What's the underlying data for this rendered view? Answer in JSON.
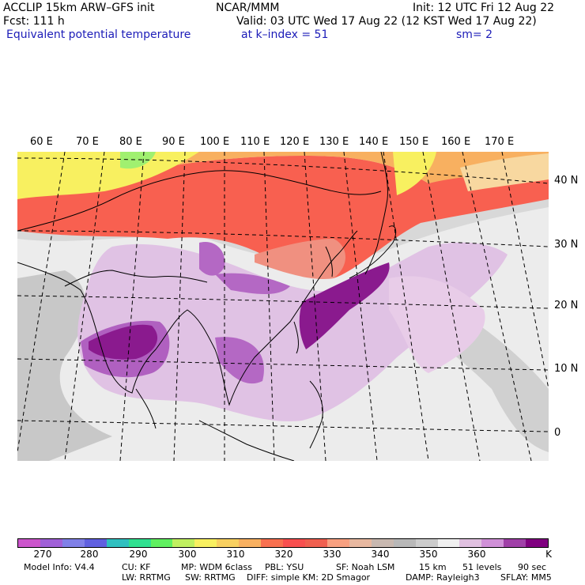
{
  "header": {
    "model": "ACCLIP 15km ARW–GFS init",
    "forecast": "Fcst:  111 h",
    "field": "Equivalent potential temperature",
    "center": "NCAR/MMM",
    "init": "Init: 12 UTC Fri 12 Aug 22",
    "valid": "Valid: 03 UTC Wed 17 Aug 22 (12 KST Wed 17 Aug 22)",
    "level": "at k–index =  51",
    "smooth": "sm= 2"
  },
  "map": {
    "lon_labels": [
      "60 E",
      "70 E",
      "80 E",
      "90 E",
      "100 E",
      "110 E",
      "120 E",
      "130 E",
      "140 E",
      "150 E",
      "160 E",
      "170 E"
    ],
    "lat_labels": [
      "40 N",
      "30 N",
      "20 N",
      "10 N",
      "0"
    ],
    "regions": {
      "land": "Asia continent",
      "ocean": "Pacific / Indian Ocean"
    }
  },
  "colorbar": {
    "colors": [
      "#cc55cc",
      "#a060d8",
      "#8080e8",
      "#6060e0",
      "#30c0c0",
      "#30e090",
      "#60f060",
      "#c0f060",
      "#f8f060",
      "#f8d060",
      "#f8b060",
      "#f87050",
      "#f85050",
      "#f06050",
      "#f8a080",
      "#e8b8a0",
      "#c8b8b0",
      "#b8b8b8",
      "#cccccc",
      "#f0f0f0",
      "#e0c0e0",
      "#d090d8",
      "#a040a8",
      "#800080"
    ],
    "labels": [
      "270",
      "280",
      "290",
      "300",
      "310",
      "320",
      "330",
      "340",
      "350",
      "360",
      "K"
    ]
  },
  "footer": {
    "line1": [
      "Model Info: V4.4",
      "CU: KF",
      "MP: WDM 6class",
      "PBL: YSU",
      "SF: Noah LSM",
      "15 km",
      "51 levels",
      "90 sec"
    ],
    "line2": [
      "LW: RRTMG",
      "SW: RRTMG",
      "DIFF: simple KM: 2D Smagor",
      "DAMP: Rayleigh3",
      "SFLAY: MM5"
    ]
  }
}
